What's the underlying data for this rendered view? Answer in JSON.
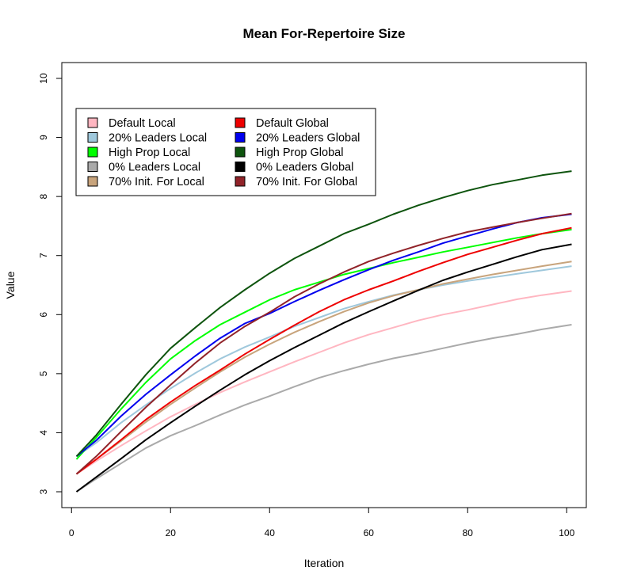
{
  "chart_data": {
    "type": "line",
    "title": "Mean For-Repertoire Size",
    "xlabel": "Iteration",
    "ylabel": "Value",
    "xlim": [
      1,
      101
    ],
    "ylim": [
      3,
      10
    ],
    "xticks": [
      0,
      20,
      40,
      60,
      80,
      100
    ],
    "yticks": [
      3,
      4,
      5,
      6,
      7,
      8,
      9,
      10
    ],
    "grid": false,
    "legend_position": "top-left",
    "x": [
      1,
      5,
      10,
      15,
      20,
      25,
      30,
      35,
      40,
      45,
      50,
      55,
      60,
      65,
      70,
      75,
      80,
      85,
      90,
      95,
      101
    ],
    "series": [
      {
        "name": "Default Local",
        "color": "#ffb6c1",
        "values": [
          3.3,
          3.52,
          3.78,
          4.03,
          4.27,
          4.48,
          4.68,
          4.86,
          5.03,
          5.2,
          5.36,
          5.52,
          5.66,
          5.78,
          5.9,
          6.0,
          6.08,
          6.17,
          6.26,
          6.33,
          6.4
        ]
      },
      {
        "name": "20% Leaders Local",
        "color": "#9fc8dc",
        "values": [
          3.6,
          3.83,
          4.17,
          4.47,
          4.75,
          5.01,
          5.25,
          5.45,
          5.62,
          5.8,
          5.95,
          6.1,
          6.22,
          6.33,
          6.42,
          6.5,
          6.57,
          6.63,
          6.69,
          6.75,
          6.82
        ]
      },
      {
        "name": "High Prop Local",
        "color": "#00ff00",
        "values": [
          3.55,
          3.92,
          4.4,
          4.85,
          5.25,
          5.56,
          5.83,
          6.04,
          6.25,
          6.42,
          6.55,
          6.68,
          6.78,
          6.88,
          6.97,
          7.06,
          7.14,
          7.22,
          7.3,
          7.37,
          7.44
        ]
      },
      {
        "name": "0% Leaders Local",
        "color": "#aaaaaa",
        "values": [
          3.0,
          3.22,
          3.48,
          3.74,
          3.95,
          4.12,
          4.3,
          4.47,
          4.62,
          4.78,
          4.93,
          5.05,
          5.16,
          5.26,
          5.34,
          5.43,
          5.52,
          5.6,
          5.67,
          5.75,
          5.83
        ]
      },
      {
        "name": "70% Init. For Local",
        "color": "#c8a47c",
        "values": [
          3.3,
          3.55,
          3.86,
          4.18,
          4.48,
          4.76,
          5.03,
          5.28,
          5.5,
          5.7,
          5.88,
          6.05,
          6.2,
          6.32,
          6.42,
          6.52,
          6.6,
          6.68,
          6.75,
          6.82,
          6.9
        ]
      },
      {
        "name": "Default Global",
        "color": "#ee0000",
        "values": [
          3.3,
          3.55,
          3.88,
          4.22,
          4.52,
          4.8,
          5.06,
          5.33,
          5.58,
          5.82,
          6.05,
          6.25,
          6.42,
          6.57,
          6.73,
          6.88,
          7.02,
          7.14,
          7.26,
          7.37,
          7.47
        ]
      },
      {
        "name": "20% Leaders Global",
        "color": "#0000ee",
        "values": [
          3.6,
          3.87,
          4.28,
          4.65,
          4.98,
          5.3,
          5.6,
          5.85,
          6.02,
          6.22,
          6.41,
          6.59,
          6.76,
          6.92,
          7.06,
          7.21,
          7.33,
          7.45,
          7.56,
          7.64,
          7.7
        ]
      },
      {
        "name": "High Prop Global",
        "color": "#0e540e",
        "values": [
          3.6,
          3.96,
          4.48,
          4.98,
          5.43,
          5.78,
          6.12,
          6.42,
          6.7,
          6.95,
          7.16,
          7.37,
          7.53,
          7.7,
          7.85,
          7.98,
          8.1,
          8.2,
          8.28,
          8.36,
          8.43
        ]
      },
      {
        "name": "0% Leaders Global",
        "color": "#000000",
        "values": [
          3.0,
          3.25,
          3.56,
          3.88,
          4.17,
          4.45,
          4.72,
          4.98,
          5.22,
          5.44,
          5.65,
          5.86,
          6.05,
          6.23,
          6.41,
          6.58,
          6.72,
          6.85,
          6.98,
          7.1,
          7.19
        ]
      },
      {
        "name": "70% Init. For Global",
        "color": "#912329",
        "values": [
          3.3,
          3.6,
          4.02,
          4.43,
          4.81,
          5.18,
          5.52,
          5.8,
          6.04,
          6.3,
          6.52,
          6.72,
          6.9,
          7.04,
          7.17,
          7.29,
          7.4,
          7.48,
          7.56,
          7.63,
          7.71
        ]
      }
    ]
  }
}
